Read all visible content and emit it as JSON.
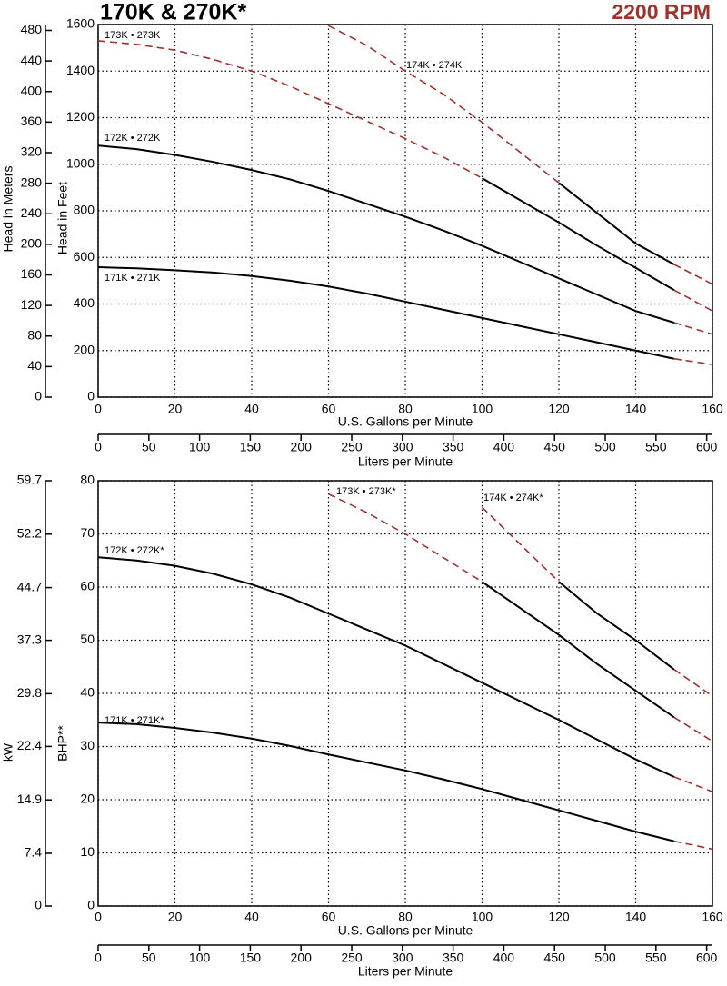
{
  "chart_data": [
    {
      "type": "line",
      "title": "170K & 270K*",
      "subtitle": "2200 RPM",
      "xlabel": "U.S. Gallons per Minute",
      "x2label": "Liters per Minute",
      "ylabel": "Head in Feet",
      "y2label": "Head in Meters",
      "x": [
        0,
        10,
        20,
        30,
        40,
        50,
        60,
        70,
        80,
        90,
        100,
        110,
        120,
        130,
        140,
        150,
        160
      ],
      "xlim": [
        0,
        160
      ],
      "xticks": [
        0,
        20,
        40,
        60,
        80,
        100,
        120,
        140,
        160
      ],
      "x2lim": [
        0,
        605.7
      ],
      "x2ticks": [
        0,
        50,
        100,
        150,
        200,
        250,
        300,
        350,
        400,
        450,
        500,
        550,
        600
      ],
      "ylim": [
        0,
        1600
      ],
      "yticks": [
        0,
        200,
        400,
        600,
        800,
        1000,
        1200,
        1400,
        1600
      ],
      "y2lim": [
        0,
        487.7
      ],
      "y2ticks": [
        0,
        40,
        80,
        120,
        160,
        200,
        240,
        280,
        320,
        360,
        400,
        440,
        480
      ],
      "grid": true,
      "series": [
        {
          "name": "173K • 273K",
          "color": "#000000",
          "dashed_color": "#a0322d",
          "values": [
            null,
            null,
            null,
            null,
            null,
            null,
            null,
            null,
            null,
            null,
            940,
            845,
            750,
            650,
            555,
            460,
            null
          ],
          "dashed_values": [
            1530,
            1515,
            1490,
            1450,
            1400,
            1335,
            1260,
            1185,
            1110,
            1030,
            940,
            null,
            null,
            null,
            null,
            460,
            370
          ]
        },
        {
          "name": "174K • 274K",
          "color": "#000000",
          "dashed_color": "#a0322d",
          "values": [
            null,
            null,
            null,
            null,
            null,
            null,
            null,
            null,
            null,
            null,
            null,
            null,
            920,
            790,
            660,
            570,
            null
          ],
          "dashed_values": [
            null,
            null,
            null,
            null,
            null,
            null,
            1595,
            1510,
            1400,
            1300,
            1180,
            1050,
            920,
            null,
            null,
            570,
            485
          ]
        },
        {
          "name": "172K • 272K",
          "color": "#000000",
          "dashed_color": "#a0322d",
          "values": [
            1080,
            1065,
            1040,
            1010,
            975,
            935,
            885,
            830,
            775,
            715,
            650,
            580,
            510,
            440,
            370,
            320,
            null
          ],
          "dashed_values": [
            null,
            null,
            null,
            null,
            null,
            null,
            null,
            null,
            null,
            null,
            null,
            null,
            null,
            null,
            null,
            320,
            270
          ]
        },
        {
          "name": "171K • 271K",
          "color": "#000000",
          "dashed_color": "#a0322d",
          "values": [
            558,
            553,
            545,
            535,
            520,
            500,
            475,
            445,
            410,
            375,
            340,
            305,
            270,
            235,
            200,
            165,
            null
          ],
          "dashed_values": [
            null,
            null,
            null,
            null,
            null,
            null,
            null,
            null,
            null,
            null,
            null,
            null,
            null,
            null,
            null,
            165,
            140
          ]
        }
      ]
    },
    {
      "type": "line",
      "xlabel": "U.S. Gallons per Minute",
      "x2label": "Liters per Minute",
      "ylabel": "BHP**",
      "y2label": "kW",
      "x": [
        0,
        10,
        20,
        30,
        40,
        50,
        60,
        70,
        80,
        90,
        100,
        110,
        120,
        130,
        140,
        150,
        160
      ],
      "xlim": [
        0,
        160
      ],
      "xticks": [
        0,
        20,
        40,
        60,
        80,
        100,
        120,
        140,
        160
      ],
      "x2lim": [
        0,
        605.7
      ],
      "x2ticks": [
        0,
        50,
        100,
        150,
        200,
        250,
        300,
        350,
        400,
        450,
        500,
        550,
        600
      ],
      "ylim": [
        0,
        80
      ],
      "yticks": [
        0,
        10,
        20,
        30,
        40,
        50,
        60,
        70,
        80
      ],
      "y2lim": [
        0,
        59.7
      ],
      "y2ticks": [
        0,
        7.4,
        14.9,
        22.4,
        29.8,
        37.3,
        44.7,
        52.2,
        59.7
      ],
      "grid": true,
      "series": [
        {
          "name": "173K • 273K*",
          "color": "#000000",
          "dashed_color": "#a0322d",
          "values": [
            null,
            null,
            null,
            null,
            null,
            null,
            null,
            null,
            null,
            null,
            61,
            56,
            51,
            45.5,
            40.5,
            35.5,
            null
          ],
          "dashed_values": [
            null,
            null,
            null,
            null,
            null,
            null,
            77.5,
            74,
            70,
            65.5,
            61,
            null,
            null,
            null,
            null,
            35.5,
            31
          ]
        },
        {
          "name": "174K • 274K*",
          "color": "#000000",
          "dashed_color": "#a0322d",
          "values": [
            null,
            null,
            null,
            null,
            null,
            null,
            null,
            null,
            null,
            null,
            null,
            null,
            61,
            55,
            50,
            44.5,
            null
          ],
          "dashed_values": [
            null,
            null,
            null,
            null,
            null,
            null,
            null,
            null,
            null,
            null,
            75,
            68,
            61,
            null,
            null,
            44.5,
            39.5
          ]
        },
        {
          "name": "172K • 272K*",
          "color": "#000000",
          "dashed_color": "#a0322d",
          "values": [
            65.6,
            65,
            64,
            62.5,
            60.5,
            58,
            55,
            52,
            49,
            45.5,
            42,
            38.5,
            35,
            31.3,
            27.6,
            24.3,
            null
          ],
          "dashed_values": [
            null,
            null,
            null,
            null,
            null,
            null,
            null,
            null,
            null,
            null,
            null,
            null,
            null,
            null,
            null,
            24.3,
            21.5
          ]
        },
        {
          "name": "171K • 271K*",
          "color": "#000000",
          "dashed_color": "#a0322d",
          "values": [
            34.5,
            34.2,
            33.5,
            32.6,
            31.5,
            30.1,
            28.5,
            27,
            25.5,
            23.8,
            22,
            20,
            18,
            16,
            14,
            12.2,
            null
          ],
          "dashed_values": [
            null,
            null,
            null,
            null,
            null,
            null,
            null,
            null,
            null,
            null,
            null,
            null,
            null,
            null,
            null,
            12.2,
            10.7
          ]
        }
      ]
    }
  ]
}
